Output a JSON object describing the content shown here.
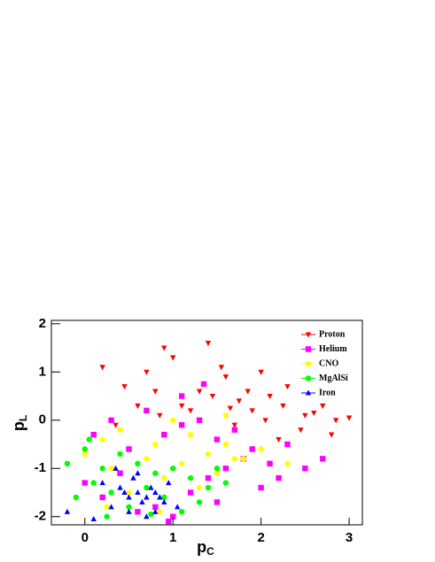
{
  "chart_data": {
    "type": "scatter",
    "x_label": {
      "text": "p",
      "sub": "C"
    },
    "y_label": {
      "text": "p",
      "sub": "L"
    },
    "xlim": [
      -0.38,
      3.15
    ],
    "ylim": [
      -2.17,
      2.07
    ],
    "xticks": [
      0,
      1,
      2,
      3
    ],
    "yticks": [
      -2,
      -1,
      0,
      1,
      2
    ],
    "legend": "top-right",
    "series": [
      {
        "name": "Proton",
        "color": "#ff0000",
        "marker": "triangle-down",
        "x": [
          0.2,
          0.45,
          0.7,
          0.9,
          1.1,
          1.3,
          1.55,
          1.75,
          1.9,
          2.1,
          2.3,
          2.5,
          2.7,
          2.85,
          3.0,
          0.6,
          0.85,
          1.2,
          1.45,
          1.65,
          1.85,
          2.05,
          2.25,
          2.45,
          2.6,
          2.8,
          1.0,
          1.4,
          0.35,
          1.6,
          2.0,
          0.8,
          2.2,
          1.7
        ],
        "values": [
          1.1,
          0.7,
          1.0,
          1.5,
          0.3,
          0.6,
          1.1,
          0.4,
          0.2,
          0.5,
          0.7,
          0.1,
          0.3,
          0.0,
          0.05,
          0.3,
          0.1,
          0.2,
          0.5,
          0.25,
          0.6,
          0.0,
          0.3,
          -0.2,
          0.15,
          -0.3,
          1.3,
          1.6,
          -0.1,
          0.9,
          1.0,
          0.6,
          -0.4,
          -0.1
        ]
      },
      {
        "name": "Helium",
        "color": "#ff00ff",
        "marker": "square",
        "x": [
          0.1,
          0.3,
          0.5,
          0.7,
          0.9,
          1.1,
          1.3,
          1.5,
          1.7,
          1.9,
          2.1,
          2.3,
          2.5,
          2.7,
          0.0,
          0.2,
          0.4,
          0.6,
          0.8,
          1.0,
          1.2,
          1.4,
          1.6,
          1.8,
          2.0,
          2.2,
          1.35,
          1.1,
          0.95,
          1.5
        ],
        "values": [
          -0.3,
          0.0,
          -0.6,
          0.2,
          -0.3,
          -0.1,
          0.0,
          -0.4,
          -0.2,
          -0.6,
          -0.9,
          -0.5,
          -1.0,
          -0.8,
          -1.3,
          -1.6,
          -1.1,
          -1.9,
          -1.8,
          -2.0,
          -1.5,
          -1.2,
          -1.0,
          -0.8,
          -1.4,
          -1.2,
          0.75,
          0.5,
          -2.1,
          -1.7
        ]
      },
      {
        "name": "CNO",
        "color": "#ffff00",
        "marker": "circle",
        "x": [
          0.0,
          0.2,
          0.4,
          0.6,
          0.8,
          1.0,
          1.2,
          1.4,
          1.6,
          1.8,
          2.0,
          2.3,
          0.1,
          0.3,
          0.5,
          0.7,
          0.9,
          1.1,
          1.3,
          1.5,
          1.7,
          0.25,
          0.85,
          1.6
        ],
        "values": [
          -0.7,
          -0.4,
          -0.2,
          -0.9,
          -0.5,
          0.0,
          -0.3,
          -0.7,
          -0.5,
          -0.8,
          -0.6,
          -0.9,
          -1.3,
          -1.0,
          -1.5,
          -0.8,
          -1.2,
          -0.9,
          -1.4,
          -1.1,
          -0.8,
          -1.8,
          -1.9,
          0.1
        ]
      },
      {
        "name": "MgAlSi",
        "color": "#00ff00",
        "marker": "circle",
        "x": [
          -0.2,
          0.0,
          0.2,
          0.4,
          0.6,
          0.8,
          1.0,
          1.2,
          1.4,
          1.6,
          -0.1,
          0.1,
          0.3,
          0.5,
          0.7,
          0.9,
          1.1,
          1.3,
          0.25,
          0.75,
          1.5,
          0.05
        ],
        "values": [
          -0.9,
          -0.6,
          -1.0,
          -0.7,
          -0.9,
          -1.1,
          -1.0,
          -1.2,
          -1.4,
          -1.3,
          -1.6,
          -1.3,
          -1.5,
          -1.8,
          -1.4,
          -1.6,
          -1.9,
          -1.7,
          -2.0,
          -1.95,
          -1.0,
          -0.4
        ]
      },
      {
        "name": "Iron",
        "color": "#0000ff",
        "marker": "triangle-up",
        "x": [
          0.2,
          0.35,
          0.45,
          0.55,
          0.65,
          0.75,
          0.85,
          0.95,
          1.05,
          0.3,
          0.5,
          0.6,
          0.7,
          0.8,
          0.9,
          0.4,
          0.6,
          0.7,
          0.5,
          0.8,
          -0.2,
          0.1
        ],
        "values": [
          -1.3,
          -1.0,
          -1.5,
          -1.2,
          -1.7,
          -1.4,
          -1.6,
          -1.3,
          -1.8,
          -1.8,
          -1.9,
          -1.5,
          -2.0,
          -1.9,
          -1.7,
          -1.4,
          -1.1,
          -1.6,
          -1.6,
          -1.5,
          -1.9,
          -2.05
        ]
      }
    ]
  }
}
